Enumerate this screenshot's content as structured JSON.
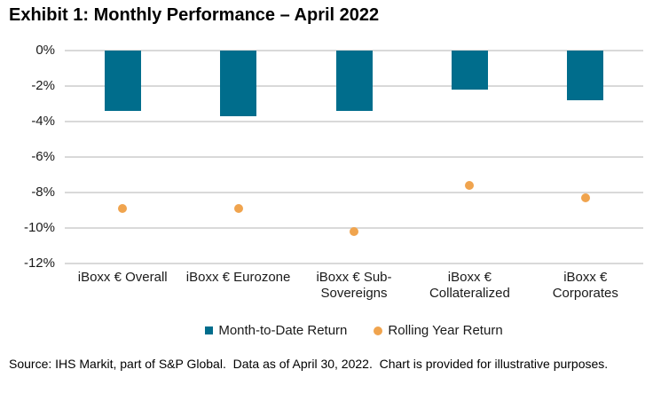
{
  "title": "Exhibit 1: Monthly Performance – April 2022",
  "footer": "Source: IHS Markit, part of S&P Global.  Data as of April 30, 2022.  Chart is provided for illustrative purposes.",
  "colors": {
    "bar": "#006D8C",
    "dot": "#F0A44E",
    "gridline": "#D9D9D9",
    "text": "#1A1A1A"
  },
  "chart_data": {
    "type": "bar",
    "subtypes": [
      "bar",
      "scatter"
    ],
    "categories": [
      "iBoxx € Overall",
      "iBoxx € Eurozone",
      "iBoxx € Sub-\nSovereigns",
      "iBoxx €\nCollateralized",
      "iBoxx €\nCorporates"
    ],
    "series": [
      {
        "name": "Month-to-Date Return",
        "type": "bar",
        "values": [
          -3.4,
          -3.7,
          -3.4,
          -2.2,
          -2.8
        ]
      },
      {
        "name": "Rolling Year Return",
        "type": "scatter",
        "values": [
          -8.9,
          -8.9,
          -10.2,
          -7.6,
          -8.3
        ]
      }
    ],
    "ylabel": "",
    "xlabel": "",
    "ylim": [
      -12,
      0
    ],
    "ytick_step": 2,
    "ytick_labels": [
      "0%",
      "-2%",
      "-4%",
      "-6%",
      "-8%",
      "-10%",
      "-12%"
    ],
    "grid": true,
    "legend_position": "bottom"
  }
}
